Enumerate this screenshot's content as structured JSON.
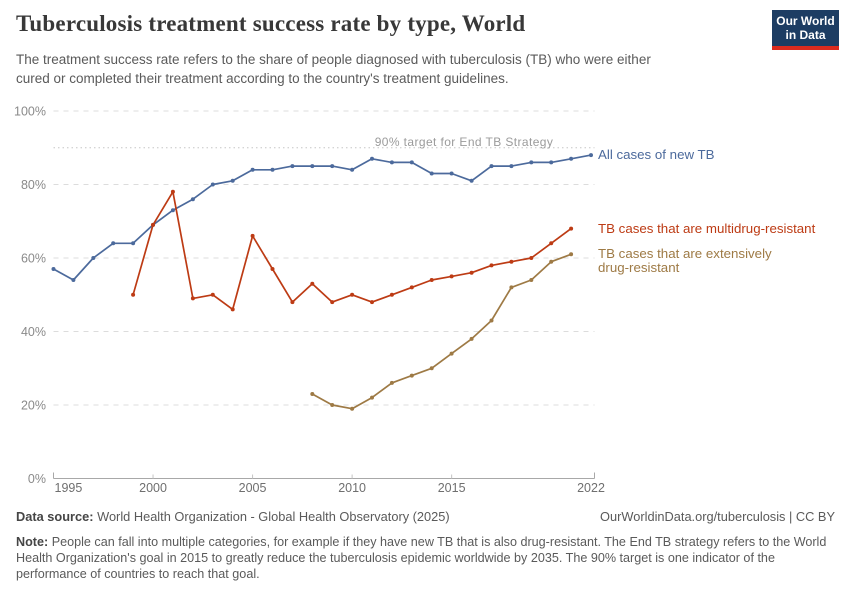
{
  "header": {
    "logo": {
      "line1": "Our World",
      "line2": "in Data"
    }
  },
  "chart_data": {
    "type": "line",
    "title": "Tuberculosis treatment success rate by type, World",
    "subtitle": "The treatment success rate refers to the share of people diagnosed with tuberculosis (TB) who were either cured or completed their treatment according to the country's treatment guidelines.",
    "xlabel": "",
    "ylabel": "",
    "x_range": [
      1995,
      2022
    ],
    "y_range": [
      0,
      100
    ],
    "x_ticks": [
      1995,
      2000,
      2005,
      2010,
      2015,
      2022
    ],
    "y_ticks": [
      0,
      20,
      40,
      60,
      80,
      100
    ],
    "y_tick_suffix": "%",
    "grid": "horizontal-dashed",
    "legend_position": "right-of-lines",
    "annotation": {
      "label": "90% target for End TB Strategy",
      "y": 90
    },
    "series": [
      {
        "name": "All cases of new TB",
        "color": "#4C6A9C",
        "x": [
          1995,
          1996,
          1997,
          1998,
          1999,
          2000,
          2001,
          2002,
          2003,
          2004,
          2005,
          2006,
          2007,
          2008,
          2009,
          2010,
          2011,
          2012,
          2013,
          2014,
          2015,
          2016,
          2017,
          2018,
          2019,
          2020,
          2021,
          2022
        ],
        "values": [
          57,
          54,
          60,
          64,
          64,
          69,
          73,
          76,
          80,
          81,
          84,
          84,
          85,
          85,
          85,
          84,
          87,
          86,
          86,
          83,
          83,
          81,
          85,
          85,
          86,
          86,
          87,
          88
        ]
      },
      {
        "name": "TB cases that are multidrug-resistant",
        "color": "#BD3B14",
        "x": [
          1999,
          2000,
          2001,
          2002,
          2003,
          2004,
          2005,
          2006,
          2007,
          2008,
          2009,
          2010,
          2011,
          2012,
          2013,
          2014,
          2015,
          2016,
          2017,
          2018,
          2019,
          2020,
          2021
        ],
        "values": [
          50,
          69,
          78,
          49,
          50,
          46,
          66,
          57,
          48,
          53,
          48,
          50,
          48,
          50,
          52,
          54,
          55,
          56,
          58,
          59,
          60,
          64,
          68
        ]
      },
      {
        "name": "TB cases that are extensively drug-resistant",
        "legend_lines": [
          "TB cases that are extensively",
          "drug-resistant"
        ],
        "color": "#9E7A45",
        "x": [
          2008,
          2009,
          2010,
          2011,
          2012,
          2013,
          2014,
          2015,
          2016,
          2017,
          2018,
          2019,
          2020,
          2021
        ],
        "values": [
          23,
          20,
          19,
          22,
          26,
          28,
          30,
          34,
          38,
          43,
          52,
          54,
          59,
          61
        ]
      }
    ]
  },
  "footer": {
    "datasource_label": "Data source:",
    "datasource_text": "World Health Organization - Global Health Observatory (2025)",
    "link": "OurWorldinData.org/tuberculosis | CC BY",
    "note_label": "Note:",
    "note_text": "People can fall into multiple categories, for example if they have new TB that is also drug-resistant. The End TB strategy refers to the World Health Organization's goal in 2015 to greatly reduce the tuberculosis epidemic worldwide by 2035. The 90% target is one indicator of the performance of countries to reach that goal."
  }
}
